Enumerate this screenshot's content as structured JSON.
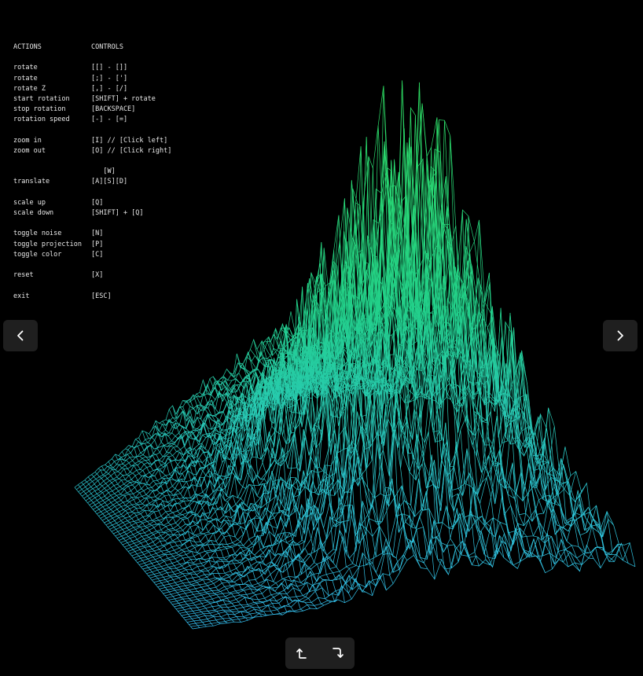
{
  "controls": {
    "header": {
      "action": "ACTIONS",
      "control": "CONTROLS"
    },
    "groups": [
      [
        {
          "action": "rotate",
          "control": "[[] - []]"
        },
        {
          "action": "rotate",
          "control": "[;] - [']"
        },
        {
          "action": "rotate Z",
          "control": "[,] - [/]"
        },
        {
          "action": "start rotation",
          "control": "[SHIFT] + rotate"
        },
        {
          "action": "stop rotation",
          "control": "[BACKSPACE]"
        },
        {
          "action": "rotation speed",
          "control": "[-] - [=]"
        }
      ],
      [
        {
          "action": "zoom in",
          "control": "[I] // [Click left]"
        },
        {
          "action": "zoom out",
          "control": "[O] // [Click right]"
        }
      ],
      [
        {
          "action": "",
          "control": "   [W]"
        },
        {
          "action": "translate",
          "control": "[A][S][D]"
        }
      ],
      [
        {
          "action": "scale up",
          "control": "[Q]"
        },
        {
          "action": "scale down",
          "control": "[SHIFT] + [Q]"
        }
      ],
      [
        {
          "action": "toggle noise",
          "control": "[N]"
        },
        {
          "action": "toggle projection",
          "control": "[P]"
        },
        {
          "action": "toggle color",
          "control": "[C]"
        }
      ],
      [
        {
          "action": "reset",
          "control": "[X]"
        }
      ],
      [
        {
          "action": "exit",
          "control": "[ESC]"
        }
      ]
    ]
  },
  "navigation": {
    "prev_icon": "chevron-left-icon",
    "next_icon": "chevron-right-icon"
  },
  "rotation_buttons": {
    "left_icon": "rotate-left-icon",
    "right_icon": "rotate-right-icon"
  },
  "colors": {
    "background": "#000000",
    "wire_low": "#35bff2",
    "wire_high": "#2fe05a",
    "button_bg": "#1f1f1f",
    "text": "#e8e8e8"
  }
}
